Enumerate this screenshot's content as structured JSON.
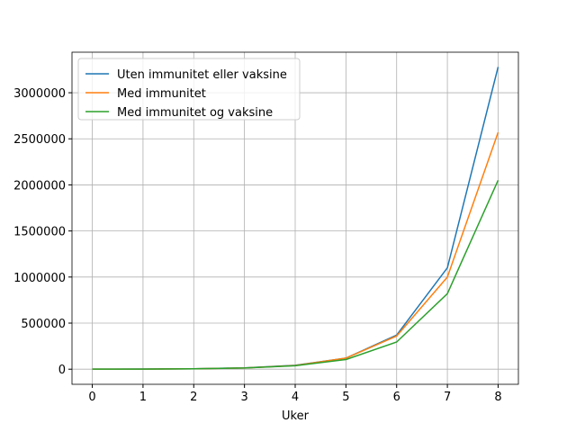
{
  "chart_data": {
    "type": "line",
    "x_label": "Uker",
    "x": [
      0,
      1,
      2,
      3,
      4,
      5,
      6,
      7,
      8
    ],
    "series": [
      {
        "name": "Uten immunitet eller vaksine",
        "color": "#1f77b4",
        "values": [
          500,
          1500,
          4500,
          14000,
          42000,
          120000,
          370000,
          1100000,
          3280000
        ]
      },
      {
        "name": "Med immunitet",
        "color": "#ff7f0e",
        "values": [
          500,
          1400,
          4300,
          13000,
          40000,
          120000,
          360000,
          1000000,
          2570000
        ]
      },
      {
        "name": "Med immunitet og vaksine",
        "color": "#2ca02c",
        "values": [
          500,
          1400,
          4300,
          13000,
          38000,
          105000,
          295000,
          820000,
          2050000
        ]
      }
    ],
    "xlim": [
      -0.4,
      8.4
    ],
    "xticks": [
      0,
      1,
      2,
      3,
      4,
      5,
      6,
      7,
      8
    ],
    "ylim": [
      -164000,
      3440000
    ],
    "yticks": [
      0,
      500000,
      1000000,
      1500000,
      2000000,
      2500000,
      3000000
    ],
    "grid": true,
    "legend": "upper-left"
  }
}
